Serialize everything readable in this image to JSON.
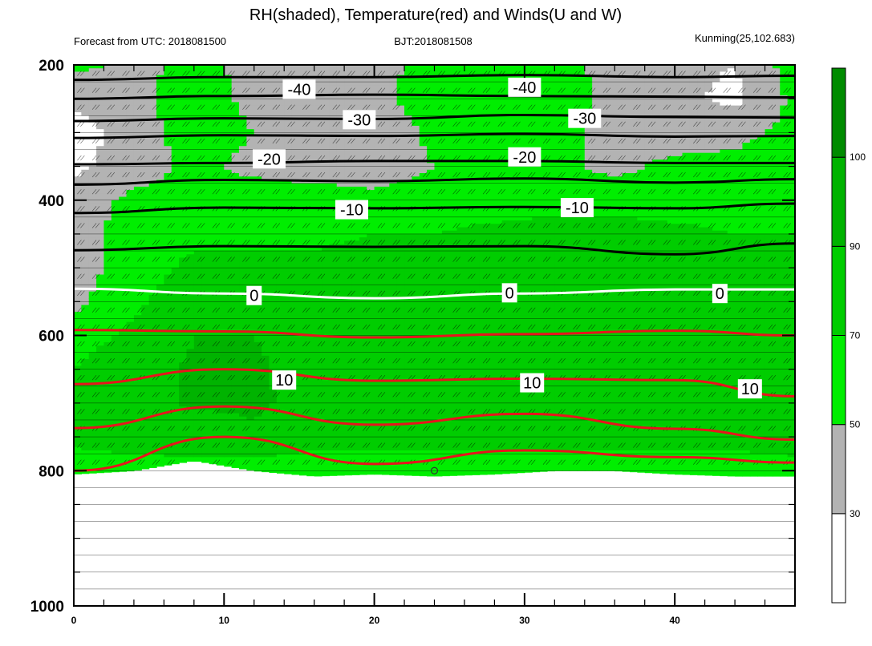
{
  "chart_data": {
    "type": "heatmap",
    "title": "RH(shaded), Temperature(red) and Winds(U and W)",
    "subtitle_left": "Forecast from UTC: 2018081500",
    "subtitle_center": "BJT:2018081508",
    "subtitle_right": "Kunming(25,102.683)",
    "x_axis": {
      "range": [
        0,
        48
      ],
      "ticks": [
        0,
        10,
        20,
        30,
        40
      ],
      "tick_labels": [
        "0",
        "10",
        "20",
        "30",
        "40"
      ]
    },
    "y_axis": {
      "range": [
        1000,
        200
      ],
      "ticks": [
        200,
        400,
        600,
        800,
        1000
      ],
      "tick_labels": [
        "200",
        "400",
        "600",
        "800",
        "1000"
      ],
      "minor_ticks": [
        250,
        300,
        350,
        450,
        500,
        550,
        650,
        700,
        750,
        850,
        900,
        950
      ]
    },
    "colorbar": {
      "levels": [
        30,
        50,
        70,
        90,
        100
      ],
      "labels": [
        "30",
        "50",
        "70",
        "90",
        "100"
      ],
      "colors": [
        "#ffffff",
        "#b3b3b3",
        "#00ee00",
        "#00cd00",
        "#00b300",
        "#008b00"
      ]
    },
    "rh_grid": {
      "x": [
        0,
        4,
        8,
        12,
        16,
        20,
        24,
        28,
        32,
        36,
        40,
        44,
        48
      ],
      "p": [
        200,
        250,
        300,
        350,
        400,
        450,
        500,
        550,
        600,
        650,
        700,
        750,
        800
      ],
      "values": [
        [
          55,
          45,
          55,
          45,
          40,
          45,
          55,
          60,
          55,
          45,
          35,
          30,
          60
        ],
        [
          35,
          45,
          60,
          45,
          40,
          45,
          60,
          60,
          60,
          45,
          35,
          25,
          55
        ],
        [
          20,
          40,
          60,
          50,
          40,
          35,
          55,
          60,
          60,
          40,
          40,
          45,
          55
        ],
        [
          25,
          40,
          55,
          45,
          40,
          40,
          50,
          60,
          55,
          45,
          55,
          55,
          60
        ],
        [
          40,
          55,
          55,
          60,
          60,
          55,
          60,
          60,
          60,
          60,
          60,
          60,
          65
        ],
        [
          40,
          60,
          65,
          65,
          65,
          70,
          70,
          75,
          80,
          80,
          75,
          70,
          70
        ],
        [
          40,
          60,
          75,
          75,
          75,
          80,
          80,
          85,
          85,
          90,
          80,
          75,
          75
        ],
        [
          45,
          65,
          85,
          90,
          80,
          80,
          90,
          90,
          85,
          85,
          80,
          80,
          80
        ],
        [
          60,
          75,
          90,
          90,
          85,
          85,
          85,
          90,
          88,
          85,
          80,
          80,
          80
        ],
        [
          70,
          85,
          92,
          92,
          85,
          85,
          85,
          90,
          90,
          86,
          82,
          80,
          82
        ],
        [
          75,
          85,
          92,
          92,
          86,
          85,
          85,
          85,
          86,
          84,
          82,
          88,
          88
        ],
        [
          75,
          80,
          82,
          88,
          80,
          80,
          80,
          80,
          80,
          80,
          80,
          80,
          90
        ],
        [
          60,
          60,
          62,
          60,
          55,
          55,
          55,
          55,
          55,
          55,
          55,
          55,
          55
        ]
      ],
      "surface_pressure": [
        805,
        800,
        785,
        800,
        808,
        805,
        808,
        805,
        800,
        800,
        805,
        808,
        808
      ]
    },
    "temperature_contours": [
      {
        "level": -40,
        "x": [
          0,
          10,
          20,
          30,
          40,
          48
        ],
        "p": [
          222,
          218,
          218,
          215,
          218,
          216
        ]
      },
      {
        "level": -35,
        "x": [
          0,
          10,
          20,
          30,
          40,
          48
        ],
        "p": [
          250,
          246,
          244,
          246,
          247,
          248
        ]
      },
      {
        "level": -30,
        "x": [
          0,
          10,
          20,
          30,
          40,
          48
        ],
        "p": [
          283,
          279,
          280,
          274,
          277,
          278
        ]
      },
      {
        "level": -25,
        "x": [
          0,
          10,
          20,
          30,
          40,
          48
        ],
        "p": [
          308,
          304,
          305,
          302,
          306,
          305
        ]
      },
      {
        "level": -20,
        "x": [
          0,
          10,
          20,
          30,
          40,
          48
        ],
        "p": [
          347,
          345,
          342,
          342,
          345,
          345
        ]
      },
      {
        "level": -15,
        "x": [
          0,
          10,
          20,
          30,
          40,
          48
        ],
        "p": [
          377,
          370,
          372,
          368,
          374,
          369
        ]
      },
      {
        "level": -10,
        "x": [
          0,
          10,
          20,
          30,
          40,
          48
        ],
        "p": [
          419,
          411,
          412,
          410,
          412,
          405
        ]
      },
      {
        "level": -5,
        "x": [
          0,
          10,
          20,
          30,
          40,
          48
        ],
        "p": [
          474,
          468,
          469,
          468,
          480,
          464
        ]
      },
      {
        "level": 0,
        "x": [
          0,
          10,
          20,
          30,
          40,
          48
        ],
        "p": [
          531,
          538,
          545,
          538,
          532,
          532
        ]
      },
      {
        "level": 5,
        "x": [
          0,
          10,
          20,
          30,
          40,
          48
        ],
        "p": [
          592,
          594,
          603,
          598,
          593,
          600
        ]
      },
      {
        "level": 10,
        "x": [
          0,
          10,
          20,
          30,
          40,
          48
        ],
        "p": [
          672,
          650,
          667,
          664,
          666,
          690
        ]
      },
      {
        "level": 15,
        "x": [
          0,
          10,
          20,
          30,
          40,
          48
        ],
        "p": [
          737,
          705,
          732,
          716,
          738,
          754
        ]
      },
      {
        "level": 20,
        "x": [
          0,
          10,
          20,
          30,
          40,
          48
        ],
        "p": [
          800,
          750,
          790,
          770,
          780,
          788
        ]
      }
    ],
    "contour_labels": [
      {
        "text": "-40",
        "x": 15,
        "p": 236
      },
      {
        "text": "-40",
        "x": 30,
        "p": 233
      },
      {
        "text": "-30",
        "x": 19,
        "p": 281
      },
      {
        "text": "-30",
        "x": 34,
        "p": 279
      },
      {
        "text": "-20",
        "x": 13,
        "p": 339
      },
      {
        "text": "-20",
        "x": 30,
        "p": 336
      },
      {
        "text": "-10",
        "x": 18.5,
        "p": 414
      },
      {
        "text": "-10",
        "x": 33.5,
        "p": 411
      },
      {
        "text": "0",
        "x": 12,
        "p": 541
      },
      {
        "text": "0",
        "x": 29,
        "p": 537
      },
      {
        "text": "0",
        "x": 43,
        "p": 538
      },
      {
        "text": "10",
        "x": 14,
        "p": 666
      },
      {
        "text": "10",
        "x": 30.5,
        "p": 670
      },
      {
        "text": "10",
        "x": 45,
        "p": 679
      }
    ],
    "surface_marker": {
      "x": 24,
      "p": 800
    },
    "grid": true,
    "legend": "right"
  }
}
